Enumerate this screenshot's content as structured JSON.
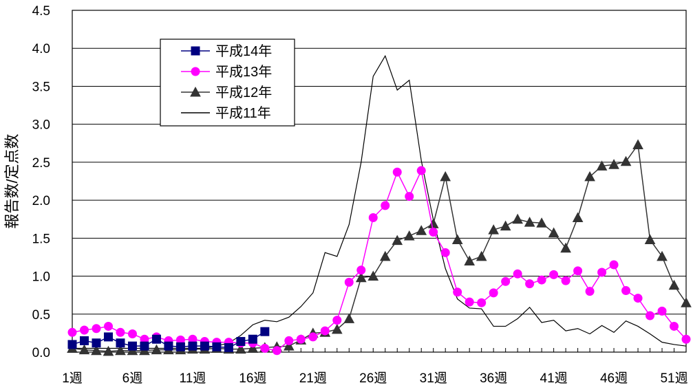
{
  "chart_data": {
    "type": "line",
    "ylabel": "報告数/定点数",
    "xlabel": "",
    "ylim": [
      0,
      4.5
    ],
    "yticks": [
      "0.0",
      "0.5",
      "1.0",
      "1.5",
      "2.0",
      "2.5",
      "3.0",
      "3.5",
      "4.0",
      "4.5"
    ],
    "xlim": [
      1,
      52
    ],
    "xticks": [
      {
        "week": 1,
        "label": "1週"
      },
      {
        "week": 6,
        "label": "6週"
      },
      {
        "week": 11,
        "label": "11週"
      },
      {
        "week": 16,
        "label": "16週"
      },
      {
        "week": 21,
        "label": "21週"
      },
      {
        "week": 26,
        "label": "26週"
      },
      {
        "week": 31,
        "label": "31週"
      },
      {
        "week": 36,
        "label": "36週"
      },
      {
        "week": 41,
        "label": "41週"
      },
      {
        "week": 46,
        "label": "46週"
      },
      {
        "week": 51,
        "label": "51週"
      }
    ],
    "grid": "horizontal",
    "legend_position": "top-left",
    "series": [
      {
        "name": "平成14年",
        "color": "#000080",
        "marker": "square",
        "x": [
          1,
          2,
          3,
          4,
          5,
          6,
          7,
          8,
          9,
          10,
          11,
          12,
          13,
          14,
          15,
          16,
          17
        ],
        "values": [
          0.1,
          0.15,
          0.12,
          0.2,
          0.12,
          0.08,
          0.08,
          0.17,
          0.08,
          0.07,
          0.08,
          0.08,
          0.07,
          0.06,
          0.14,
          0.17,
          0.27
        ]
      },
      {
        "name": "平成13年",
        "color": "#FF00FF",
        "marker": "circle",
        "x": [
          1,
          2,
          3,
          4,
          5,
          6,
          7,
          8,
          9,
          10,
          11,
          12,
          13,
          14,
          15,
          16,
          17,
          18,
          19,
          20,
          21,
          22,
          23,
          24,
          25,
          26,
          27,
          28,
          29,
          30,
          31,
          32,
          33,
          34,
          35,
          36,
          37,
          38,
          39,
          40,
          41,
          42,
          43,
          44,
          45,
          46,
          47,
          48,
          49,
          50,
          51,
          52
        ],
        "values": [
          0.26,
          0.29,
          0.31,
          0.34,
          0.26,
          0.24,
          0.17,
          0.2,
          0.15,
          0.16,
          0.17,
          0.14,
          0.13,
          0.13,
          0.12,
          0.12,
          0.05,
          0.02,
          0.15,
          0.17,
          0.2,
          0.28,
          0.42,
          0.92,
          1.08,
          1.77,
          1.93,
          2.37,
          2.05,
          2.39,
          1.58,
          1.31,
          0.79,
          0.66,
          0.65,
          0.78,
          0.93,
          1.03,
          0.9,
          0.95,
          1.02,
          0.94,
          1.07,
          0.8,
          1.05,
          1.15,
          0.81,
          0.71,
          0.48,
          0.54,
          0.34,
          0.17
        ]
      },
      {
        "name": "平成12年",
        "color": "#333333",
        "marker": "triangle",
        "x": [
          1,
          2,
          3,
          4,
          5,
          6,
          7,
          8,
          9,
          10,
          11,
          12,
          13,
          14,
          15,
          16,
          17,
          18,
          19,
          20,
          21,
          22,
          23,
          24,
          25,
          26,
          27,
          28,
          29,
          30,
          31,
          32,
          33,
          34,
          35,
          36,
          37,
          38,
          39,
          40,
          41,
          42,
          43,
          44,
          45,
          46,
          47,
          48,
          49,
          50,
          51,
          52
        ],
        "values": [
          0.05,
          0.03,
          0.02,
          0.01,
          0.02,
          0.02,
          0.02,
          0.03,
          0.03,
          0.03,
          0.04,
          0.04,
          0.05,
          0.04,
          0.04,
          0.05,
          0.06,
          0.07,
          0.08,
          0.16,
          0.25,
          0.26,
          0.3,
          0.44,
          0.98,
          1.0,
          1.26,
          1.47,
          1.53,
          1.6,
          1.69,
          2.31,
          1.48,
          1.2,
          1.26,
          1.61,
          1.66,
          1.75,
          1.71,
          1.7,
          1.57,
          1.37,
          1.77,
          2.31,
          2.45,
          2.47,
          2.51,
          2.73,
          1.48,
          1.26,
          0.88,
          0.65
        ]
      },
      {
        "name": "平成11年",
        "color": "#000000",
        "marker": "none",
        "x": [
          1,
          2,
          3,
          4,
          5,
          6,
          7,
          8,
          9,
          10,
          11,
          12,
          13,
          14,
          15,
          16,
          17,
          18,
          19,
          20,
          21,
          22,
          23,
          24,
          25,
          26,
          27,
          28,
          29,
          30,
          31,
          32,
          33,
          34,
          35,
          36,
          37,
          38,
          39,
          40,
          41,
          42,
          43,
          44,
          45,
          46,
          47,
          48,
          49,
          50,
          51,
          52
        ],
        "values": [
          0.05,
          0.05,
          0.05,
          0.05,
          0.05,
          0.05,
          0.05,
          0.05,
          0.05,
          0.05,
          0.05,
          0.05,
          0.08,
          0.12,
          0.22,
          0.36,
          0.42,
          0.4,
          0.46,
          0.6,
          0.78,
          1.31,
          1.26,
          1.68,
          2.5,
          3.63,
          3.9,
          3.45,
          3.58,
          2.52,
          1.74,
          1.1,
          0.7,
          0.58,
          0.57,
          0.34,
          0.34,
          0.44,
          0.59,
          0.39,
          0.42,
          0.28,
          0.31,
          0.24,
          0.35,
          0.26,
          0.41,
          0.34,
          0.24,
          0.13,
          0.1,
          0.08
        ]
      }
    ]
  }
}
